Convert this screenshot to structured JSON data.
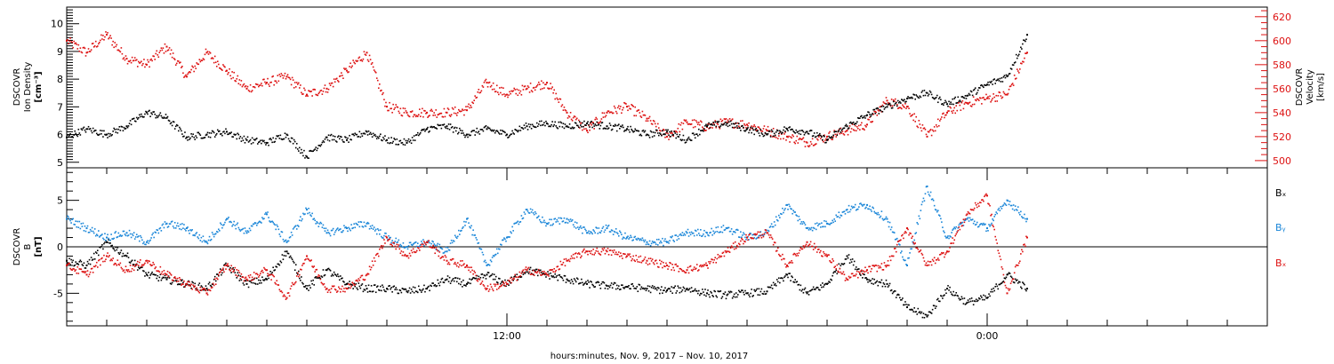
{
  "chart_data": [
    {
      "type": "scatter",
      "panel": "top",
      "y_left_label": [
        "DSCOVR",
        "Ion Density",
        "[cm⁻³]"
      ],
      "y_right_label": [
        "DSCOVR",
        "Velocity",
        "[km/s]"
      ],
      "y_left_range": [
        4.8,
        10.6
      ],
      "y_left_ticks": [
        5,
        6,
        7,
        8,
        9,
        10
      ],
      "y_right_range": [
        494,
        628
      ],
      "y_right_ticks": [
        500,
        520,
        540,
        560,
        580,
        600,
        620
      ],
      "x_range_hours": [
        1.0,
        31.0
      ],
      "series": [
        {
          "name": "Ion Density",
          "axis": "left",
          "color": "#000000",
          "x": [
            1.0,
            1.5,
            2.0,
            2.5,
            3.0,
            3.5,
            4.0,
            4.5,
            5.0,
            5.5,
            6.0,
            6.5,
            7.0,
            7.5,
            8.0,
            8.5,
            9.0,
            9.5,
            10.0,
            10.5,
            11.0,
            11.5,
            12.0,
            12.5,
            13.0,
            13.5,
            14.0,
            14.5,
            15.0,
            15.5,
            16.0,
            16.5,
            17.0,
            17.5,
            18.0,
            18.5,
            19.0,
            19.5,
            20.0,
            20.5,
            21.0,
            21.5,
            22.0,
            22.5,
            23.0,
            23.5,
            24.0,
            24.5,
            25.0
          ],
          "y": [
            5.9,
            6.2,
            6.0,
            6.3,
            6.8,
            6.6,
            5.9,
            6.0,
            6.1,
            5.8,
            5.7,
            6.0,
            5.2,
            5.9,
            5.8,
            6.1,
            5.8,
            5.7,
            6.2,
            6.3,
            6.0,
            6.2,
            6.0,
            6.3,
            6.4,
            6.3,
            6.4,
            6.3,
            6.2,
            6.0,
            6.1,
            5.8,
            6.3,
            6.4,
            6.2,
            6.0,
            6.2,
            6.1,
            5.8,
            6.3,
            6.7,
            7.0,
            7.3,
            7.5,
            7.1,
            7.4,
            7.8,
            8.1,
            9.6
          ]
        },
        {
          "name": "Velocity",
          "axis": "right",
          "color": "#dd1111",
          "x": [
            1.0,
            1.5,
            2.0,
            2.5,
            3.0,
            3.5,
            4.0,
            4.5,
            5.0,
            5.5,
            6.0,
            6.5,
            7.0,
            7.5,
            8.0,
            8.5,
            9.0,
            9.5,
            10.0,
            10.5,
            11.0,
            11.5,
            12.0,
            12.5,
            13.0,
            13.5,
            14.0,
            14.5,
            15.0,
            15.5,
            16.0,
            16.5,
            17.0,
            17.5,
            18.0,
            18.5,
            19.0,
            19.5,
            20.0,
            20.5,
            21.0,
            21.5,
            22.0,
            22.5,
            23.0,
            23.5,
            24.0,
            24.5,
            25.0
          ],
          "y": [
            600,
            590,
            605,
            585,
            580,
            595,
            570,
            590,
            575,
            560,
            565,
            570,
            555,
            560,
            575,
            590,
            545,
            540,
            540,
            540,
            542,
            565,
            555,
            560,
            565,
            540,
            525,
            540,
            545,
            535,
            520,
            532,
            528,
            532,
            530,
            525,
            520,
            515,
            520,
            525,
            530,
            550,
            545,
            520,
            540,
            548,
            552,
            555,
            590
          ]
        }
      ]
    },
    {
      "type": "scatter",
      "panel": "bottom",
      "y_left_label": [
        "DSCOVR",
        "B",
        "[nT]"
      ],
      "y_range": [
        -8.5,
        8.5
      ],
      "y_ticks": [
        -5,
        0,
        5
      ],
      "x_range_hours": [
        1.0,
        31.0
      ],
      "x_ticks": [
        {
          "hour": 12,
          "label": "12:00"
        },
        {
          "hour": 24,
          "label": "0:00"
        }
      ],
      "xlabel": "hours:minutes, Nov.  9, 2017 – Nov. 10, 2017",
      "legend": [
        "Bₓ",
        "Bᵧ",
        "Bₓ"
      ],
      "legend_placement": "right",
      "series": [
        {
          "name": "Bx",
          "color": "#000000",
          "x": [
            1.0,
            1.5,
            2.0,
            2.5,
            3.0,
            3.5,
            4.0,
            4.5,
            5.0,
            5.5,
            6.0,
            6.5,
            7.0,
            7.5,
            8.0,
            8.5,
            9.0,
            9.5,
            10.0,
            10.5,
            11.0,
            11.5,
            12.0,
            12.5,
            13.0,
            13.5,
            14.0,
            14.5,
            15.0,
            15.5,
            16.0,
            16.5,
            17.0,
            17.5,
            18.0,
            18.5,
            19.0,
            19.5,
            20.0,
            20.5,
            21.0,
            21.5,
            22.0,
            22.5,
            23.0,
            23.5,
            24.0,
            24.5,
            25.0
          ],
          "y": [
            -1.5,
            -2.0,
            0.5,
            -1.0,
            -3.0,
            -3.5,
            -4.0,
            -4.5,
            -2.0,
            -4.0,
            -3.5,
            -0.5,
            -4.5,
            -2.5,
            -4.0,
            -4.5,
            -4.5,
            -4.8,
            -4.5,
            -3.5,
            -4.0,
            -3.0,
            -4.0,
            -2.5,
            -3.0,
            -3.5,
            -4.0,
            -4.2,
            -4.3,
            -4.5,
            -4.7,
            -4.5,
            -5.0,
            -5.2,
            -5.0,
            -4.8,
            -3.0,
            -5.0,
            -4.0,
            -1.0,
            -3.5,
            -4.0,
            -6.5,
            -7.5,
            -4.5,
            -6.0,
            -5.5,
            -3.0,
            -4.5
          ]
        },
        {
          "name": "By",
          "color": "#1a86d8",
          "x": [
            1.0,
            1.5,
            2.0,
            2.5,
            3.0,
            3.5,
            4.0,
            4.5,
            5.0,
            5.5,
            6.0,
            6.5,
            7.0,
            7.5,
            8.0,
            8.5,
            9.0,
            9.5,
            10.0,
            10.5,
            11.0,
            11.5,
            12.0,
            12.5,
            13.0,
            13.5,
            14.0,
            14.5,
            15.0,
            15.5,
            16.0,
            16.5,
            17.0,
            17.5,
            18.0,
            18.5,
            19.0,
            19.5,
            20.0,
            20.5,
            21.0,
            21.5,
            22.0,
            22.5,
            23.0,
            23.5,
            24.0,
            24.5,
            25.0
          ],
          "y": [
            3.0,
            2.0,
            1.0,
            1.5,
            0.5,
            2.5,
            2.0,
            0.5,
            3.0,
            1.5,
            3.5,
            0.5,
            4.0,
            1.5,
            2.0,
            2.5,
            1.0,
            0.0,
            0.5,
            -0.5,
            3.0,
            -2.0,
            1.0,
            4.0,
            2.5,
            3.0,
            1.5,
            2.0,
            1.0,
            0.5,
            0.5,
            1.5,
            1.5,
            2.0,
            1.0,
            1.5,
            4.5,
            2.0,
            2.5,
            4.0,
            4.5,
            3.0,
            -2.0,
            6.5,
            1.0,
            3.0,
            2.0,
            5.0,
            3.0
          ]
        },
        {
          "name": "Bz",
          "color": "#dd1111",
          "x": [
            1.0,
            1.5,
            2.0,
            2.5,
            3.0,
            3.5,
            4.0,
            4.5,
            5.0,
            5.5,
            6.0,
            6.5,
            7.0,
            7.5,
            8.0,
            8.5,
            9.0,
            9.5,
            10.0,
            10.5,
            11.0,
            11.5,
            12.0,
            12.5,
            13.0,
            13.5,
            14.0,
            14.5,
            15.0,
            15.5,
            16.0,
            16.5,
            17.0,
            17.5,
            18.0,
            18.5,
            19.0,
            19.5,
            20.0,
            20.5,
            21.0,
            21.5,
            22.0,
            22.5,
            23.0,
            23.5,
            24.0,
            24.5,
            25.0
          ],
          "y": [
            -2.0,
            -3.0,
            -1.0,
            -2.5,
            -1.5,
            -3.0,
            -4.0,
            -5.0,
            -2.0,
            -3.5,
            -2.5,
            -5.5,
            -1.0,
            -4.5,
            -4.5,
            -3.0,
            1.0,
            -1.0,
            0.5,
            -1.5,
            -2.0,
            -4.5,
            -4.0,
            -2.5,
            -3.0,
            -1.5,
            -0.5,
            -0.5,
            -1.0,
            -1.5,
            -2.0,
            -2.5,
            -2.0,
            -0.5,
            1.0,
            1.5,
            -2.0,
            0.5,
            -1.0,
            -3.5,
            -2.5,
            -2.0,
            2.0,
            -2.0,
            -0.5,
            3.5,
            5.5,
            -5.0,
            1.0
          ]
        }
      ]
    }
  ]
}
